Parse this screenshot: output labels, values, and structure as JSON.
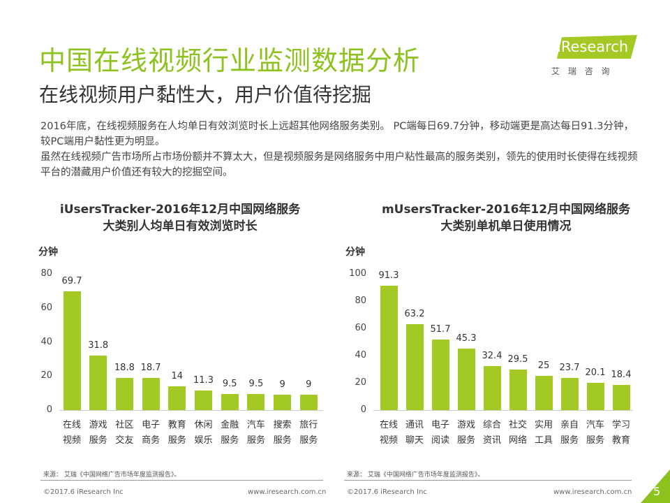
{
  "header": {
    "title": "中国在线视频行业监测数据分析",
    "subtitle": "在线视频用户黏性大，用户价值待挖掘",
    "logo_text": "iResearch",
    "logo_cn": "艾 瑞 咨 询"
  },
  "body": {
    "p1": "2016年底，在线视频服务在人均单日有效浏览时长上远超其他网络服务类别。 PC端每日69.7分钟，移动端更是高达每日91.3分钟，较PC端用户黏性更为明显。",
    "p2": "虽然在线视频广告市场所占市场份额并不算太大，但是视频服务是网络服务中用户粘性最高的服务类别，领先的使用时长使得在线视频平台的潜藏用户价值还有较大的挖掘空间。"
  },
  "chart_data": [
    {
      "type": "bar",
      "title": "iUsersTracker-2016年12月中国网络服务\n大类别人均单日有效浏览时长",
      "title_lines": [
        "iUsersTracker-2016年12月中国网络服务",
        "大类别人均单日有效浏览时长"
      ],
      "ylabel": "分钟",
      "ylim": [
        0,
        80
      ],
      "yticks": [
        "0",
        "20",
        "40",
        "60",
        "80"
      ],
      "categories": [
        [
          "在线",
          "视频"
        ],
        [
          "游戏",
          "服务"
        ],
        [
          "社区",
          "交友"
        ],
        [
          "电子",
          "商务"
        ],
        [
          "教育",
          "服务"
        ],
        [
          "休闲",
          "娱乐"
        ],
        [
          "金融",
          "服务"
        ],
        [
          "汽车",
          "服务"
        ],
        [
          "搜索",
          "服务"
        ],
        [
          "旅行",
          "服务"
        ]
      ],
      "values": [
        69.7,
        31.8,
        18.8,
        18.7,
        14,
        11.3,
        9.5,
        9.5,
        9,
        9
      ],
      "labels": [
        "69.7",
        "31.8",
        "18.8",
        "18.7",
        "14",
        "11.3",
        "9.5",
        "9.5",
        "9",
        "9"
      ]
    },
    {
      "type": "bar",
      "title_lines": [
        "mUsersTracker-2016年12月中国网络服务",
        "大类别单机单日使用情况"
      ],
      "ylabel": "分钟",
      "ylim": [
        0,
        100
      ],
      "yticks": [
        "0",
        "20",
        "40",
        "60",
        "80",
        "100"
      ],
      "categories": [
        [
          "在线",
          "视频"
        ],
        [
          "通讯",
          "聊天"
        ],
        [
          "电子",
          "阅读"
        ],
        [
          "游戏",
          "服务"
        ],
        [
          "综合",
          "资讯"
        ],
        [
          "社交",
          "网络"
        ],
        [
          "实用",
          "工具"
        ],
        [
          "亲自",
          "服务"
        ],
        [
          "汽车",
          "服务"
        ],
        [
          "学习",
          "教育"
        ]
      ],
      "values": [
        91.3,
        63.2,
        51.7,
        45.3,
        32.4,
        29.5,
        25,
        23.7,
        20.1,
        18.4
      ],
      "labels": [
        "91.3",
        "63.2",
        "51.7",
        "45.3",
        "32.4",
        "29.5",
        "25",
        "23.7",
        "20.1",
        "18.4"
      ]
    }
  ],
  "footer": {
    "source": "来源： 艾瑞《中国网络广告市场年度监测报告》。",
    "copyright": "©2017.6 iResearch Inc",
    "url": "www.iresearch.com.cn",
    "page": "5",
    "bar_color": "#a3c925"
  }
}
